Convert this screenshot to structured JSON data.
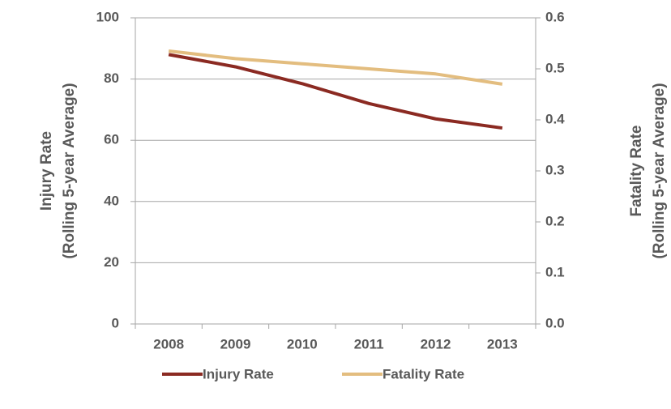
{
  "chart_data": {
    "type": "line",
    "categories": [
      "2008",
      "2009",
      "2010",
      "2011",
      "2012",
      "2013"
    ],
    "series": [
      {
        "name": "Injury Rate",
        "color": "#8b2a22",
        "values": [
          88,
          84,
          78.5,
          72,
          67,
          64
        ]
      },
      {
        "name": "Fatality Rate",
        "color": "#e3bd7f",
        "axis": "y2",
        "values": [
          0.535,
          0.52,
          0.51,
          0.5,
          0.49,
          0.47
        ]
      }
    ],
    "y_label": [
      "Injury Rate",
      "(Rolling  5-year Average)"
    ],
    "y2_label": [
      "Fatality Rate",
      "(Rolling  5-year Average)"
    ],
    "ylim": [
      0,
      100
    ],
    "yticks": [
      0,
      20,
      40,
      60,
      80,
      100
    ],
    "y2lim": [
      0,
      0.6
    ],
    "y2ticks": [
      {
        "value": 0,
        "label": "0.0"
      },
      0.1,
      0.2,
      0.3,
      0.4,
      0.5,
      0.6
    ],
    "grid": true,
    "legend": "bottom"
  }
}
